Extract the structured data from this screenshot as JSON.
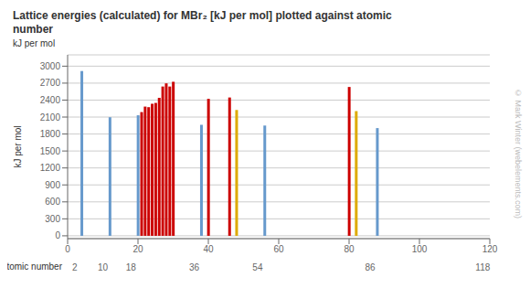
{
  "chart_data": {
    "type": "bar",
    "title": "Lattice energies (calculated) for MBr₂ [kJ per mol] plotted against atomic\nnumber",
    "ylabel": "kJ per mol",
    "xlabel": "atomic number",
    "annotations": [
      "kJ per mol",
      "© Mark Winter (webelements.com)"
    ],
    "x": [
      4,
      12,
      20,
      21,
      22,
      23,
      24,
      25,
      26,
      27,
      28,
      29,
      30,
      38,
      40,
      46,
      48,
      56,
      80,
      82,
      88
    ],
    "values": [
      2914,
      2097,
      2132,
      2188,
      2285,
      2275,
      2335,
      2350,
      2440,
      2640,
      2696,
      2640,
      2724,
      1963,
      2422,
      2446,
      2225,
      1950,
      2632,
      2205,
      1905
    ],
    "colors": [
      "#6699cc",
      "#6699cc",
      "#6699cc",
      "#cc0000",
      "#cc0000",
      "#cc0000",
      "#cc0000",
      "#cc0000",
      "#cc0000",
      "#cc0000",
      "#cc0000",
      "#cc0000",
      "#cc0000",
      "#6699cc",
      "#cc0000",
      "#cc0000",
      "#ddaa00",
      "#6699cc",
      "#cc0000",
      "#ddaa00",
      "#6699cc"
    ],
    "xlim": [
      0,
      120
    ],
    "xticks": [
      0,
      20,
      40,
      60,
      80,
      100,
      120
    ],
    "x2ticks": [
      2,
      10,
      18,
      36,
      54,
      86,
      118
    ],
    "ylim": [
      -50,
      3200
    ],
    "yticks": [
      0,
      300,
      600,
      900,
      1200,
      1500,
      1800,
      2100,
      2400,
      2700,
      3000
    ],
    "grid": true
  }
}
